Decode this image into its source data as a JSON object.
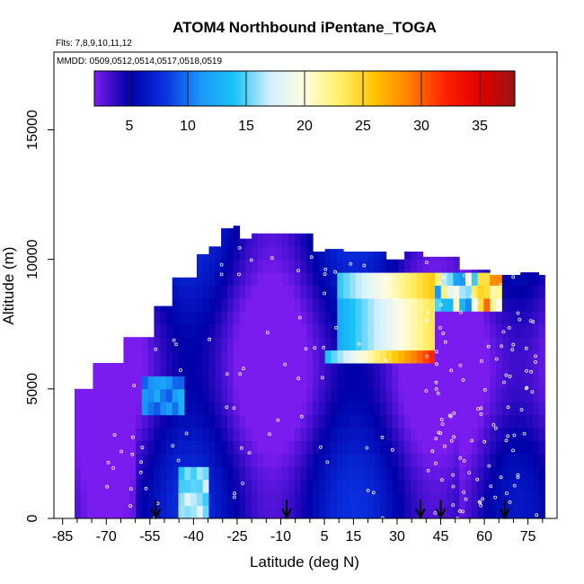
{
  "chart_data": {
    "type": "heatmap",
    "title": "ATOM4 Northbound iPentane_TOGA",
    "flights_label": "Flts: 7,8,9,10,11,12",
    "dates_label": "MMDD: 0509,0512,0514,0517,0518,0519",
    "xlabel": "Latitude (deg N)",
    "ylabel": "Altitude (m)",
    "xlim": [
      -88,
      85
    ],
    "ylim": [
      0,
      18000
    ],
    "x_ticks": [
      "-85",
      "-70",
      "-55",
      "-40",
      "-25",
      "-10",
      "5",
      "15",
      "30",
      "45",
      "60",
      "75"
    ],
    "x_tick_values": [
      -85,
      -70,
      -55,
      -40,
      -25,
      -10,
      5,
      15,
      30,
      45,
      60,
      75
    ],
    "y_ticks": [
      "0",
      "5000",
      "10000",
      "15000"
    ],
    "y_tick_values": [
      0,
      5000,
      10000,
      15000
    ],
    "colorbar": {
      "min": 2,
      "max": 38,
      "ticks": [
        "5",
        "10",
        "15",
        "20",
        "25",
        "30",
        "35"
      ],
      "tick_values": [
        5,
        10,
        15,
        20,
        25,
        30,
        35
      ],
      "colors": [
        "#7a1cf0",
        "#0000a8",
        "#0a30e0",
        "#1b95f7",
        "#19c3f7",
        "#d3f0ff",
        "#fffde0",
        "#fff066",
        "#ffc400",
        "#ff7f00",
        "#ff2200",
        "#e00000",
        "#9a1414"
      ]
    },
    "arrow_latitudes": [
      -53,
      -8,
      38,
      45,
      67
    ],
    "grid": false
  }
}
